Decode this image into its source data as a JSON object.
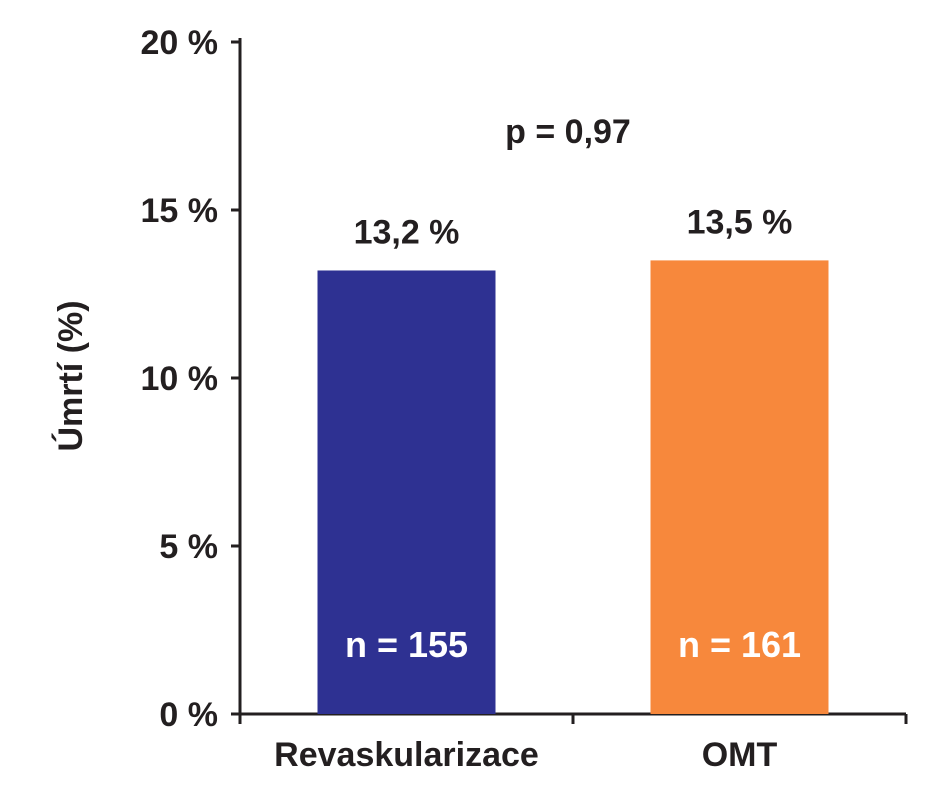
{
  "chart_data": {
    "type": "bar",
    "categories": [
      "Revaskularizace",
      "OMT"
    ],
    "values": [
      13.2,
      13.5
    ],
    "data_labels": [
      "13,2 %",
      "13,5 %"
    ],
    "n_labels": [
      "n = 155",
      "n = 161"
    ],
    "colors": [
      "#2e3192",
      "#f7883c"
    ],
    "ylabel": "Úmrtí (%)",
    "ylim": [
      0,
      20
    ],
    "yticks": [
      0,
      5,
      10,
      15,
      20
    ],
    "ytick_labels": [
      "0 %",
      "5 %",
      "10 %",
      "15 %",
      "20 %"
    ],
    "annotation": "p = 0,97",
    "grid": false,
    "legend": "none"
  }
}
